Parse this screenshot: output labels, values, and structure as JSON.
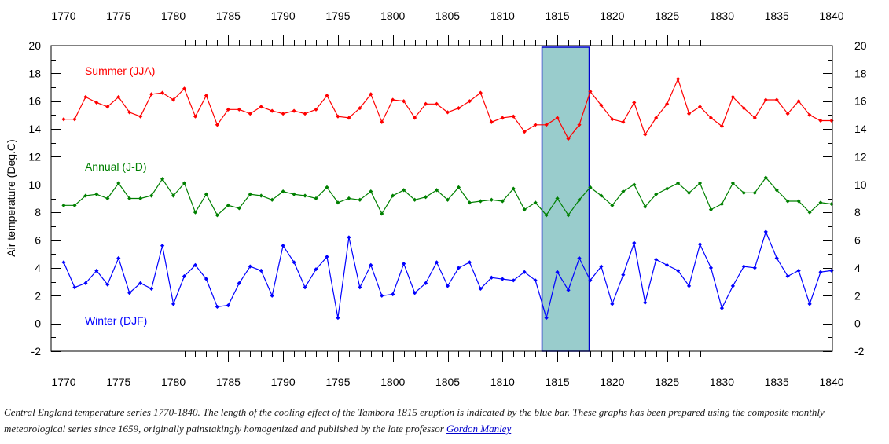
{
  "chart_data": {
    "type": "line",
    "ylabel": "Air temperature (Deg.C)",
    "xlim": [
      1770,
      1840
    ],
    "ylim": [
      -2,
      20
    ],
    "x_ticks": [
      1770,
      1775,
      1780,
      1785,
      1790,
      1795,
      1800,
      1805,
      1810,
      1815,
      1820,
      1825,
      1830,
      1835,
      1840
    ],
    "y_ticks": [
      -2,
      0,
      2,
      4,
      6,
      8,
      10,
      12,
      14,
      16,
      18,
      20
    ],
    "highlight": {
      "from": 1813.6,
      "to": 1817.9,
      "color": "#99cccc",
      "border": "#0000cc"
    },
    "series": [
      {
        "name": "Summer (JJA)",
        "color": "#ff0000",
        "label_at": [
          1771,
          18.2
        ],
        "values": [
          14.7,
          14.7,
          16.3,
          15.9,
          15.6,
          16.3,
          15.2,
          14.9,
          16.5,
          16.6,
          16.1,
          16.9,
          14.9,
          16.4,
          14.3,
          15.4,
          15.4,
          15.1,
          15.6,
          15.3,
          15.1,
          15.3,
          15.1,
          15.4,
          16.4,
          14.9,
          14.8,
          15.5,
          16.5,
          14.5,
          16.1,
          16.0,
          14.8,
          15.8,
          15.8,
          15.2,
          15.5,
          16.0,
          16.6,
          14.5,
          14.8,
          14.9,
          13.8,
          14.3,
          14.3,
          14.8,
          13.3,
          14.3,
          16.7,
          15.7,
          14.7,
          14.5,
          15.9,
          13.6,
          14.8,
          15.8,
          17.6,
          15.1,
          15.6,
          14.8,
          14.2,
          16.3,
          15.5,
          14.8,
          16.1,
          16.1,
          15.1,
          16.0,
          15.0,
          14.6,
          14.6
        ]
      },
      {
        "name": "Annual (J-D)",
        "color": "#008000",
        "label_at": [
          1771,
          11.3
        ],
        "values": [
          8.5,
          8.5,
          9.2,
          9.3,
          9.0,
          10.1,
          9.0,
          9.0,
          9.2,
          10.4,
          9.2,
          10.1,
          8.0,
          9.3,
          7.8,
          8.5,
          8.3,
          9.3,
          9.2,
          8.9,
          9.5,
          9.3,
          9.2,
          9.0,
          9.8,
          8.7,
          9.0,
          8.9,
          9.5,
          7.9,
          9.2,
          9.6,
          8.9,
          9.1,
          9.6,
          8.9,
          9.8,
          8.7,
          8.8,
          8.9,
          8.8,
          9.7,
          8.2,
          8.7,
          7.8,
          9.0,
          7.8,
          8.9,
          9.8,
          9.2,
          8.5,
          9.5,
          10.0,
          8.4,
          9.3,
          9.7,
          10.1,
          9.4,
          10.1,
          8.2,
          8.6,
          10.1,
          9.4,
          9.4,
          10.5,
          9.6,
          8.8,
          8.8,
          8.0,
          8.7,
          8.6
        ]
      },
      {
        "name": "Winter (DJF)",
        "color": "#0000ff",
        "label_at": [
          1771,
          0.2
        ],
        "values": [
          4.4,
          2.6,
          2.9,
          3.8,
          2.8,
          4.7,
          2.2,
          2.9,
          2.5,
          5.6,
          1.4,
          3.4,
          4.2,
          3.2,
          1.2,
          1.3,
          2.9,
          4.1,
          3.8,
          2.0,
          5.6,
          4.4,
          2.6,
          3.9,
          4.8,
          0.4,
          6.2,
          2.6,
          4.2,
          2.0,
          2.1,
          4.3,
          2.2,
          2.9,
          4.4,
          2.7,
          4.0,
          4.4,
          2.5,
          3.3,
          3.2,
          3.1,
          3.7,
          3.1,
          0.4,
          3.7,
          2.4,
          4.7,
          3.1,
          4.1,
          1.4,
          3.5,
          5.8,
          1.5,
          4.6,
          4.2,
          3.8,
          2.7,
          5.7,
          4.0,
          1.1,
          2.7,
          4.1,
          4.0,
          6.6,
          4.7,
          3.4,
          3.8,
          1.4,
          3.7,
          3.8
        ]
      }
    ]
  },
  "caption": {
    "text": "Central England temperature series 1770-1840. The length of the cooling effect of the Tambora 1815 eruption is indicated by the blue bar. These graphs has been prepared using the composite monthly meteorological series since 1659, originally painstakingly homogenized and published by the late professor ",
    "link_text": "Gordon Manley"
  }
}
